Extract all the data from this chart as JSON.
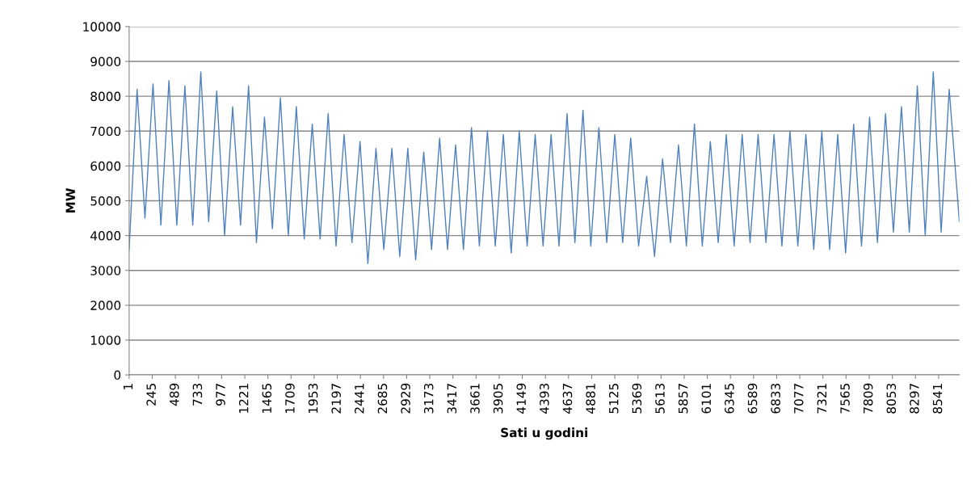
{
  "chart_data": {
    "type": "line",
    "xlabel": "Sati u godini",
    "ylabel": "MW",
    "x": [
      1,
      85,
      168,
      253,
      336,
      421,
      504,
      589,
      672,
      757,
      840,
      925,
      1008,
      1093,
      1176,
      1261,
      1344,
      1429,
      1512,
      1597,
      1680,
      1765,
      1848,
      1933,
      2016,
      2101,
      2184,
      2269,
      2352,
      2437,
      2520,
      2605,
      2688,
      2773,
      2856,
      2941,
      3024,
      3109,
      3192,
      3277,
      3360,
      3445,
      3528,
      3613,
      3696,
      3781,
      3864,
      3949,
      4032,
      4117,
      4200,
      4285,
      4368,
      4453,
      4536,
      4621,
      4704,
      4789,
      4872,
      4957,
      5040,
      5125,
      5208,
      5293,
      5376,
      5461,
      5544,
      5629,
      5712,
      5797,
      5880,
      5965,
      6048,
      6133,
      6216,
      6301,
      6384,
      6469,
      6552,
      6637,
      6720,
      6805,
      6888,
      6973,
      7056,
      7141,
      7224,
      7309,
      7392,
      7477,
      7560,
      7645,
      7728,
      7813,
      7896,
      7981,
      8064,
      8149,
      8232,
      8317,
      8400,
      8485,
      8568,
      8653,
      8760
    ],
    "series": [
      {
        "color": "#4f81bd",
        "values": [
          3600,
          8200,
          4500,
          8350,
          4300,
          8450,
          4300,
          8300,
          4300,
          8700,
          4400,
          8150,
          4000,
          7700,
          4300,
          8300,
          3800,
          7400,
          4200,
          7950,
          4000,
          7700,
          3900,
          7200,
          3900,
          7500,
          3700,
          6900,
          3800,
          6700,
          3200,
          6500,
          3600,
          6500,
          3400,
          6500,
          3300,
          6400,
          3600,
          6800,
          3600,
          6600,
          3600,
          7100,
          3700,
          7000,
          3700,
          6900,
          3500,
          7000,
          3700,
          6900,
          3700,
          6900,
          3700,
          7500,
          3800,
          7600,
          3700,
          7100,
          3800,
          6900,
          3800,
          6800,
          3700,
          5700,
          3400,
          6200,
          3800,
          6600,
          3700,
          7200,
          3700,
          6700,
          3800,
          6900,
          3700,
          6900,
          3800,
          6900,
          3800,
          6900,
          3700,
          7000,
          3700,
          6900,
          3600,
          7000,
          3600,
          6900,
          3500,
          7200,
          3700,
          7400,
          3800,
          7500,
          4100,
          7700,
          4100,
          8300,
          4000,
          8700,
          4100,
          8200,
          4400
        ]
      }
    ],
    "xlim": [
      1,
      8760
    ],
    "xticks": [
      1,
      245,
      489,
      733,
      977,
      1221,
      1465,
      1709,
      1953,
      2197,
      2441,
      2685,
      2929,
      3173,
      3417,
      3661,
      3905,
      4149,
      4393,
      4637,
      4881,
      5125,
      5369,
      5613,
      5857,
      6101,
      6345,
      6589,
      6833,
      7077,
      7321,
      7565,
      7809,
      8053,
      8297,
      8541
    ],
    "ylim": [
      0,
      10000
    ],
    "yticks": [
      0,
      1000,
      2000,
      3000,
      4000,
      5000,
      6000,
      7000,
      8000,
      9000,
      10000
    ],
    "grid": "y",
    "marker": "none",
    "line_style": "solid"
  }
}
